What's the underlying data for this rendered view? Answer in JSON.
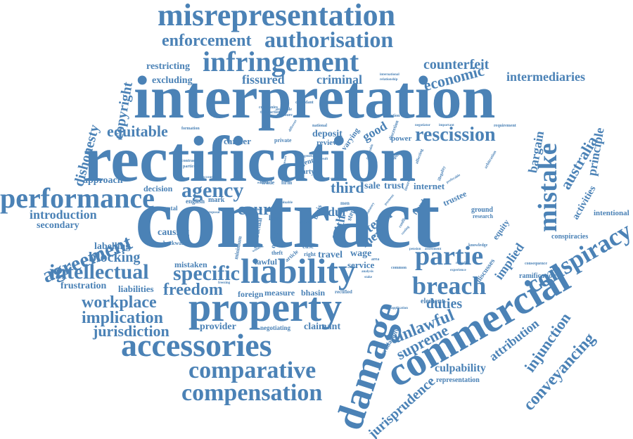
{
  "theme": {
    "word_color": "#4b82b6",
    "background": "#ffffff"
  },
  "words": [
    {
      "id": "contract",
      "text": "contract"
    },
    {
      "id": "rectification",
      "text": "rectification"
    },
    {
      "id": "interpretation",
      "text": "interpretation"
    },
    {
      "id": "commercial",
      "text": "commercial"
    },
    {
      "id": "property",
      "text": "property"
    },
    {
      "id": "damage",
      "text": "damage"
    },
    {
      "id": "liability",
      "text": "liability"
    },
    {
      "id": "accessories",
      "text": "accessories"
    },
    {
      "id": "misrepresentation",
      "text": "misrepresentation"
    },
    {
      "id": "infringement",
      "text": "infringement"
    },
    {
      "id": "performance",
      "text": "performance"
    },
    {
      "id": "mistake",
      "text": "mistake"
    },
    {
      "id": "conspiracy",
      "text": "conspiracy"
    },
    {
      "id": "breach",
      "text": "breach"
    },
    {
      "id": "comparative",
      "text": "comparative"
    },
    {
      "id": "compensation",
      "text": "compensation"
    },
    {
      "id": "authorisation",
      "text": "authorisation"
    },
    {
      "id": "partie",
      "text": "partie"
    },
    {
      "id": "intellectual",
      "text": "intellectual"
    },
    {
      "id": "agreement",
      "text": "agreement"
    },
    {
      "id": "agency",
      "text": "agency"
    },
    {
      "id": "specific",
      "text": "specific"
    },
    {
      "id": "rescission",
      "text": "rescission"
    },
    {
      "id": "enforcement",
      "text": "enforcement"
    },
    {
      "id": "workplace",
      "text": "workplace"
    },
    {
      "id": "implication",
      "text": "implication"
    },
    {
      "id": "freedom",
      "text": "freedom"
    },
    {
      "id": "unlawful",
      "text": "unlawful"
    },
    {
      "id": "conveyancing",
      "text": "conveyancing"
    },
    {
      "id": "injunction",
      "text": "injunction"
    },
    {
      "id": "equitable",
      "text": "equitable"
    },
    {
      "id": "court",
      "text": "court"
    },
    {
      "id": "jurisdiction",
      "text": "jurisdiction"
    },
    {
      "id": "jurisprudence",
      "text": "jurisprudence"
    },
    {
      "id": "supreme",
      "text": "supreme"
    },
    {
      "id": "economic",
      "text": "economic"
    },
    {
      "id": "counterfeit",
      "text": "counterfeit"
    },
    {
      "id": "australia",
      "text": "australia"
    },
    {
      "id": "dishonesty",
      "text": "dishonesty"
    },
    {
      "id": "copyright",
      "text": "copyright"
    },
    {
      "id": "blocking",
      "text": "blocking"
    },
    {
      "id": "duties",
      "text": "duties"
    },
    {
      "id": "introduction",
      "text": "introduction"
    },
    {
      "id": "culpability",
      "text": "culpability"
    },
    {
      "id": "fissured",
      "text": "fissured"
    },
    {
      "id": "criminal",
      "text": "criminal"
    },
    {
      "id": "intermediaries",
      "text": "intermediaries"
    },
    {
      "id": "principle",
      "text": "principle"
    },
    {
      "id": "bargain",
      "text": "bargain"
    },
    {
      "id": "attribution",
      "text": "attribution"
    },
    {
      "id": "implied",
      "text": "implied"
    },
    {
      "id": "third",
      "text": "third"
    },
    {
      "id": "frustration",
      "text": "frustration"
    },
    {
      "id": "labelling",
      "text": "labelling"
    },
    {
      "id": "secondary",
      "text": "secondary"
    },
    {
      "id": "approach",
      "text": "approach"
    },
    {
      "id": "excluding",
      "text": "excluding"
    },
    {
      "id": "restricting",
      "text": "restricting"
    },
    {
      "id": "provider",
      "text": "provider"
    },
    {
      "id": "claimant",
      "text": "claimant"
    },
    {
      "id": "causing",
      "text": "causing"
    },
    {
      "id": "decision",
      "text": "decision"
    },
    {
      "id": "activities",
      "text": "activities"
    },
    {
      "id": "good",
      "text": "good"
    },
    {
      "id": "deposit",
      "text": "deposit"
    },
    {
      "id": "carrier",
      "text": "carrier"
    },
    {
      "id": "liabilities",
      "text": "liabilities"
    },
    {
      "id": "service",
      "text": "service"
    },
    {
      "id": "lawful",
      "text": "lawful"
    },
    {
      "id": "mistaken",
      "text": "mistaken"
    },
    {
      "id": "dur",
      "text": "dur"
    },
    {
      "id": "faith",
      "text": "faith"
    },
    {
      "id": "mean",
      "text": "mean"
    },
    {
      "id": "term",
      "text": "term"
    },
    {
      "id": "sale",
      "text": "sale"
    },
    {
      "id": "trust",
      "text": "trust"
    },
    {
      "id": "internet",
      "text": "internet"
    },
    {
      "id": "trustee",
      "text": "trustee"
    },
    {
      "id": "wage",
      "text": "wage"
    },
    {
      "id": "travel",
      "text": "travel"
    },
    {
      "id": "measure",
      "text": "measure"
    },
    {
      "id": "foreign",
      "text": "foreign"
    },
    {
      "id": "bhasin",
      "text": "bhasin"
    },
    {
      "id": "review",
      "text": "review"
    },
    {
      "id": "varying",
      "text": "varying"
    },
    {
      "id": "power",
      "text": "power"
    },
    {
      "id": "equity",
      "text": "equity"
    },
    {
      "id": "intentional",
      "text": "intentional"
    },
    {
      "id": "conspiracies",
      "text": "conspiracies"
    },
    {
      "id": "ramification",
      "text": "ramification"
    },
    {
      "id": "element",
      "text": "element"
    },
    {
      "id": "representation",
      "text": "representation"
    },
    {
      "id": "availability",
      "text": "availability"
    },
    {
      "id": "discusses",
      "text": "discusses"
    },
    {
      "id": "ground",
      "text": "ground"
    },
    {
      "id": "research",
      "text": "research"
    },
    {
      "id": "negotiating",
      "text": "negotiating"
    },
    {
      "id": "rectified",
      "text": "rectified"
    },
    {
      "id": "english",
      "text": "english"
    },
    {
      "id": "mark",
      "text": "mark"
    },
    {
      "id": "mental",
      "text": "mental"
    },
    {
      "id": "backward",
      "text": "backward"
    },
    {
      "id": "minimum",
      "text": "minimum"
    },
    {
      "id": "contractual",
      "text": "contractual"
    },
    {
      "id": "land",
      "text": "land"
    },
    {
      "id": "cost",
      "text": "cost"
    },
    {
      "id": "case",
      "text": "case"
    },
    {
      "id": "order",
      "text": "order"
    },
    {
      "id": "theft",
      "text": "theft"
    },
    {
      "id": "article",
      "text": "article"
    },
    {
      "id": "right",
      "text": "right"
    },
    {
      "id": "basis",
      "text": "basis"
    },
    {
      "id": "agent",
      "text": "agent"
    },
    {
      "id": "party",
      "text": "party"
    },
    {
      "id": "trade",
      "text": "trade"
    },
    {
      "id": "firm",
      "text": "firm"
    },
    {
      "id": "private",
      "text": "private"
    },
    {
      "id": "formation",
      "text": "formation"
    },
    {
      "id": "contracting",
      "text": "contracting"
    },
    {
      "id": "particular",
      "text": "particular"
    },
    {
      "id": "companies",
      "text": "companies"
    },
    {
      "id": "transaction",
      "text": "transaction"
    },
    {
      "id": "available",
      "text": "available"
    },
    {
      "id": "pressure",
      "text": "pressure"
    },
    {
      "id": "defendant",
      "text": "defendant"
    },
    {
      "id": "international",
      "text": "international"
    },
    {
      "id": "relationship",
      "text": "relationship"
    },
    {
      "id": "national",
      "text": "national"
    },
    {
      "id": "violation",
      "text": "violation"
    },
    {
      "id": "discretion",
      "text": "discretion"
    },
    {
      "id": "negotiator",
      "text": "negotiator"
    },
    {
      "id": "important",
      "text": "important"
    },
    {
      "id": "requirement",
      "text": "requirement"
    },
    {
      "id": "example",
      "text": "example"
    },
    {
      "id": "affecting",
      "text": "affecting"
    },
    {
      "id": "illegality",
      "text": "illegality"
    },
    {
      "id": "preferable",
      "text": "preferable"
    },
    {
      "id": "arbitration",
      "text": "arbitration"
    },
    {
      "id": "knowledge",
      "text": "knowledge"
    },
    {
      "id": "consequence",
      "text": "consequence"
    },
    {
      "id": "experience",
      "text": "experience"
    },
    {
      "id": "remedies",
      "text": "remedies"
    },
    {
      "id": "application",
      "text": "application"
    },
    {
      "id": "pension",
      "text": "pension"
    },
    {
      "id": "assessment",
      "text": "assessment"
    },
    {
      "id": "common",
      "text": "common"
    },
    {
      "id": "area",
      "text": "area"
    },
    {
      "id": "step",
      "text": "step"
    },
    {
      "id": "fraud",
      "text": "fraud"
    },
    {
      "id": "substance",
      "text": "substance"
    },
    {
      "id": "edition",
      "text": "edition"
    },
    {
      "id": "winding",
      "text": "winding"
    },
    {
      "id": "freezing",
      "text": "freezing"
    },
    {
      "id": "valuable",
      "text": "valuable"
    },
    {
      "id": "general",
      "text": "general"
    },
    {
      "id": "result",
      "text": "result"
    },
    {
      "id": "answer",
      "text": "answer"
    },
    {
      "id": "different",
      "text": "different"
    },
    {
      "id": "political",
      "text": "political"
    },
    {
      "id": "proposal",
      "text": "proposal"
    },
    {
      "id": "seeking",
      "text": "seeking"
    },
    {
      "id": "conflict",
      "text": "conflict"
    },
    {
      "id": "insurer",
      "text": "insurer"
    },
    {
      "id": "statutory",
      "text": "statutory"
    },
    {
      "id": "men",
      "text": "men"
    },
    {
      "id": "role",
      "text": "role"
    },
    {
      "id": "payment",
      "text": "payment"
    },
    {
      "id": "costing",
      "text": "costing"
    },
    {
      "id": "entry",
      "text": "entry"
    },
    {
      "id": "reasonable",
      "text": "reasonable"
    },
    {
      "id": "stake",
      "text": "stake"
    },
    {
      "id": "analysis",
      "text": "analysis"
    },
    {
      "id": "scope",
      "text": "scope"
    },
    {
      "id": "account",
      "text": "account"
    }
  ]
}
